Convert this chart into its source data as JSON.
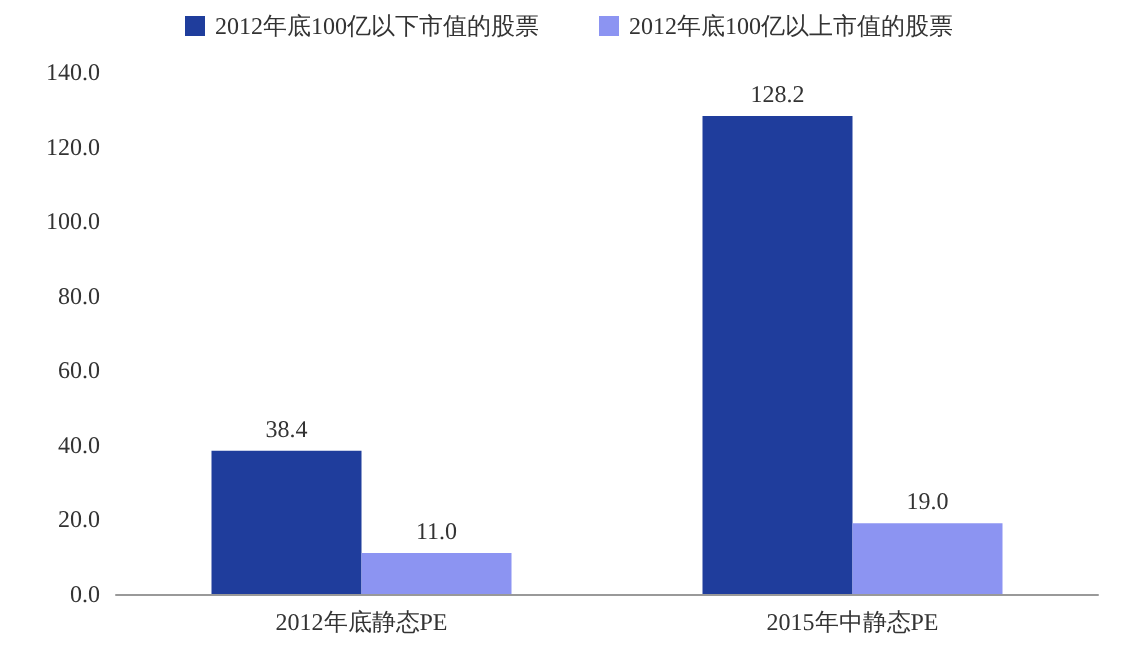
{
  "chart_data": {
    "type": "bar",
    "categories": [
      "2012年底静态PE",
      "2015年中静态PE"
    ],
    "series": [
      {
        "name": "2012年底100亿以下市值的股票",
        "color": "#1f3d9c",
        "values": [
          38.4,
          128.2
        ],
        "value_labels": [
          "38.4",
          "128.2"
        ]
      },
      {
        "name": "2012年底100亿以上市值的股票",
        "color": "#8c94f2",
        "values": [
          11.0,
          19.0
        ],
        "value_labels": [
          "11.0",
          "19.0"
        ]
      }
    ],
    "ylim": [
      0,
      140
    ],
    "yticks": [
      {
        "value": 0,
        "label": "0.0"
      },
      {
        "value": 20,
        "label": "20.0"
      },
      {
        "value": 40,
        "label": "40.0"
      },
      {
        "value": 60,
        "label": "60.0"
      },
      {
        "value": 80,
        "label": "80.0"
      },
      {
        "value": 100,
        "label": "100.0"
      },
      {
        "value": 120,
        "label": "120.0"
      },
      {
        "value": 140,
        "label": "140.0"
      }
    ],
    "grid": false,
    "legend": "top"
  }
}
